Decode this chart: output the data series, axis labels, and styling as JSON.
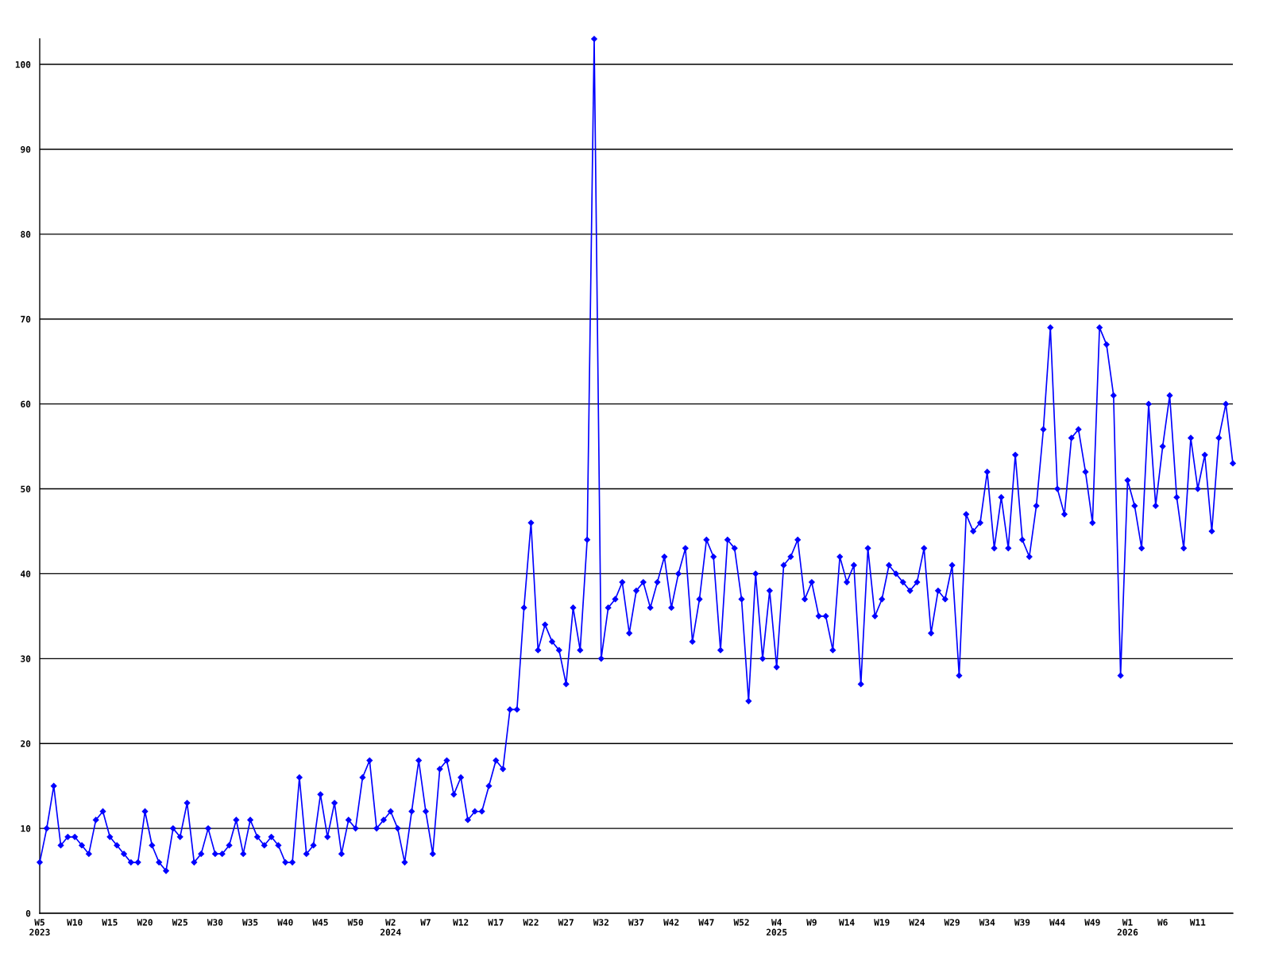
{
  "chart_data": {
    "type": "line",
    "categories": [
      "W5\n2023",
      null,
      null,
      null,
      null,
      "W10",
      null,
      null,
      null,
      null,
      "W15",
      null,
      null,
      null,
      null,
      "W20",
      null,
      null,
      null,
      null,
      "W25",
      null,
      null,
      null,
      null,
      "W30",
      null,
      null,
      null,
      null,
      "W35",
      null,
      null,
      null,
      null,
      "W40",
      null,
      null,
      null,
      null,
      "W45",
      null,
      null,
      null,
      null,
      "W50",
      null,
      null,
      null,
      null,
      "W2\n2024",
      null,
      null,
      null,
      null,
      "W7",
      null,
      null,
      null,
      null,
      "W12",
      null,
      null,
      null,
      null,
      "W17",
      null,
      null,
      null,
      null,
      "W22",
      null,
      null,
      null,
      null,
      "W27",
      null,
      null,
      null,
      null,
      "W32",
      null,
      null,
      null,
      null,
      "W37",
      null,
      null,
      null,
      null,
      "W42",
      null,
      null,
      null,
      null,
      "W47",
      null,
      null,
      null,
      null,
      "W52",
      null,
      null,
      null,
      null,
      "W4\n2025",
      null,
      null,
      null,
      null,
      "W9",
      null,
      null,
      null,
      null,
      "W14",
      null,
      null,
      null,
      null,
      "W19",
      null,
      null,
      null,
      null,
      "W24",
      null,
      null,
      null,
      null,
      "W29",
      null,
      null,
      null,
      null,
      "W34",
      null,
      null,
      null,
      null,
      "W39",
      null,
      null,
      null,
      null,
      "W44",
      null,
      null,
      null,
      null,
      "W49",
      null,
      null,
      null,
      null,
      "W1\n2026",
      null,
      null,
      null,
      null,
      "W6",
      null,
      null,
      null,
      null,
      "W11",
      null,
      null,
      null,
      null,
      null
    ],
    "series": [
      {
        "color": "#0000ff",
        "values": [
          6,
          10,
          15,
          8,
          9,
          9,
          8,
          7,
          11,
          12,
          9,
          8,
          7,
          6,
          6,
          12,
          8,
          6,
          5,
          10,
          9,
          13,
          6,
          7,
          10,
          7,
          7,
          8,
          11,
          7,
          11,
          9,
          8,
          9,
          8,
          6,
          6,
          16,
          7,
          8,
          14,
          9,
          13,
          7,
          11,
          10,
          16,
          18,
          10,
          11,
          12,
          10,
          6,
          12,
          18,
          12,
          7,
          17,
          18,
          14,
          16,
          11,
          12,
          12,
          15,
          18,
          17,
          24,
          24,
          36,
          46,
          31,
          34,
          32,
          31,
          27,
          36,
          31,
          44,
          103,
          30,
          36,
          37,
          39,
          33,
          38,
          39,
          36,
          39,
          42,
          36,
          40,
          43,
          32,
          37,
          44,
          42,
          31,
          44,
          43,
          37,
          25,
          40,
          30,
          38,
          29,
          41,
          42,
          44,
          37,
          39,
          35,
          35,
          31,
          42,
          39,
          41,
          27,
          43,
          35,
          37,
          41,
          40,
          39,
          38,
          39,
          43,
          33,
          38,
          37,
          41,
          28,
          47,
          45,
          46,
          52,
          43,
          49,
          43,
          54,
          44,
          42,
          48,
          57,
          69,
          50,
          47,
          56,
          57,
          52,
          46,
          69,
          67,
          61,
          28,
          51,
          48,
          43,
          60,
          48,
          55,
          61,
          49,
          43,
          56,
          50,
          54,
          45,
          56,
          60,
          53
        ]
      }
    ],
    "ylim": [
      0,
      103
    ],
    "yticks": [
      0,
      10,
      20,
      30,
      40,
      50,
      60,
      70,
      80,
      90,
      100
    ],
    "grid": "y",
    "marker": "diamond",
    "line_style": "solid"
  }
}
